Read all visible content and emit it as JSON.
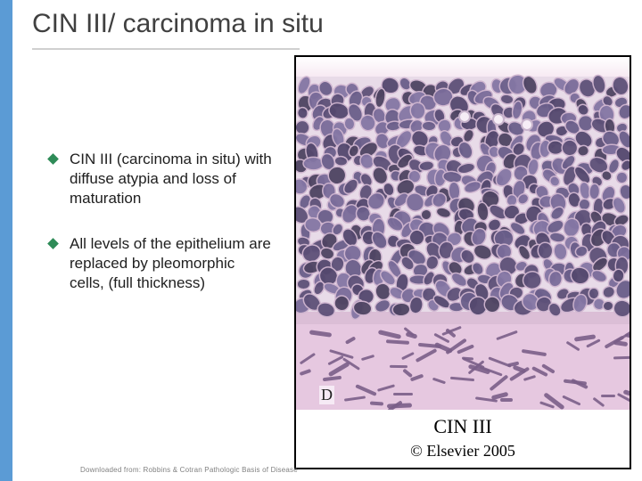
{
  "accent_stripe_color": "#5b9bd5",
  "title": "CIN III/ carcinoma in situ",
  "bullets": [
    "CIN III (carcinoma in situ) with diffuse atypia and loss of maturation",
    "All levels of the epithelium are replaced by pleomorphic cells, (full thickness)"
  ],
  "bullet_marker_color": "#2e8b57",
  "figure": {
    "panel_label": "D",
    "caption": "CIN III",
    "copyright": "© Elsevier 2005",
    "source_note": "Downloaded from: Robbins & Cotran Pathologic Basis of Disease",
    "background_color": "#e8dbe8",
    "stroma_color": "#e6c8e0",
    "nucleus_palette": [
      "#6a5e8a",
      "#54486e",
      "#7a6c9a",
      "#5d5078",
      "#8476a4",
      "#4e4462"
    ],
    "cytoplasm_color": "#d0b6d0",
    "surface_color": "#f4e2ee",
    "basement_band_color": "#d8b8d2",
    "spindle_color": "#7a5e88"
  }
}
